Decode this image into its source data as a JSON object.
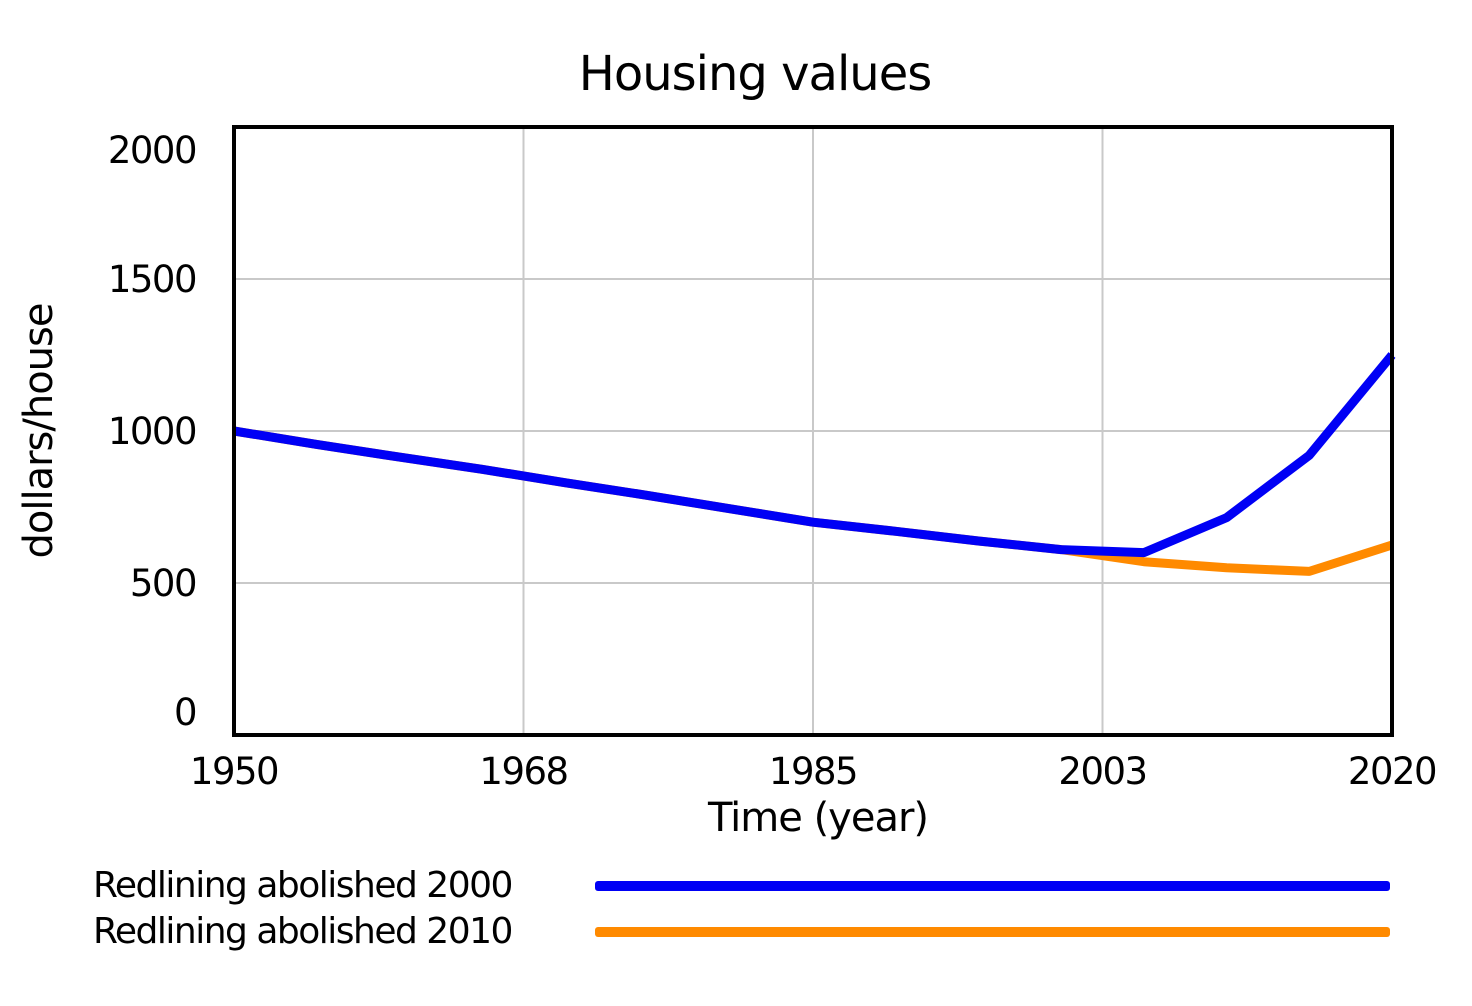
{
  "chart_data": {
    "type": "line",
    "title": "Housing values",
    "xlabel": "Time (year)",
    "ylabel": "dollars/house",
    "grid": true,
    "legend_position": "bottom-left",
    "x_axis": {
      "min": 1950,
      "max": 2020,
      "ticks": [
        {
          "label": "1950",
          "year": 1950
        },
        {
          "label": "1968",
          "year": 1967.5
        },
        {
          "label": "1985",
          "year": 1985
        },
        {
          "label": "2003",
          "year": 2002.5
        },
        {
          "label": "2020",
          "year": 2020
        }
      ]
    },
    "y_axis": {
      "min": 0,
      "max": 2000,
      "ticks": [
        {
          "label": "0",
          "value": 0
        },
        {
          "label": "500",
          "value": 500
        },
        {
          "label": "1000",
          "value": 1000
        },
        {
          "label": "1500",
          "value": 1500
        },
        {
          "label": "2000",
          "value": 2000
        }
      ]
    },
    "x": [
      1950,
      1955,
      1960,
      1965,
      1970,
      1975,
      1980,
      1985,
      1990,
      1995,
      2000,
      2005,
      2010,
      2015,
      2020
    ],
    "series": [
      {
        "name": "Redlining abolished 2000",
        "color": "#0000f5",
        "values": [
          1000,
          956,
          914,
          874,
          830,
          788,
          744,
          700,
          670,
          638,
          610,
          600,
          715,
          920,
          1250
        ]
      },
      {
        "name": "Redlining abolished 2010",
        "color": "#ff8a00",
        "values": [
          1000,
          956,
          914,
          874,
          830,
          788,
          744,
          700,
          670,
          638,
          610,
          570,
          550,
          538,
          625
        ]
      }
    ]
  }
}
